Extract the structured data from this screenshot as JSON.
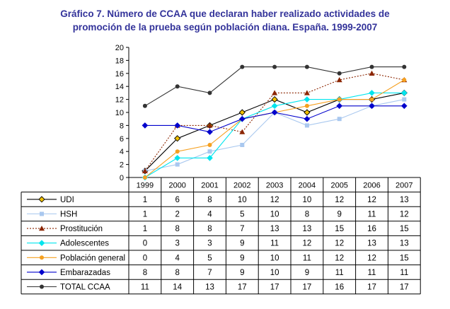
{
  "chart_data": {
    "type": "line",
    "title_lines": [
      "Gráfico 7. Número de CCAA que declaran haber realizado actividades  de",
      "promoción de la prueba según población diana.  España. 1999-2007"
    ],
    "categories": [
      "1999",
      "2000",
      "2001",
      "2002",
      "2003",
      "2004",
      "2005",
      "2006",
      "2007"
    ],
    "y_ticks": [
      "0",
      "2",
      "4",
      "6",
      "8",
      "10",
      "12",
      "14",
      "16",
      "18",
      "20"
    ],
    "ylim": [
      0,
      20
    ],
    "grid": false,
    "legend_placement": "data table below chart",
    "series": [
      {
        "name": "UDI",
        "values": [
          1,
          6,
          8,
          10,
          12,
          10,
          12,
          12,
          13
        ],
        "color": "#000000",
        "marker": "diamond-open",
        "marker_color": "#f0c000",
        "dash": "solid"
      },
      {
        "name": "HSH",
        "values": [
          1,
          2,
          4,
          5,
          10,
          8,
          9,
          11,
          12
        ],
        "color": "#a9c8ef",
        "marker": "square",
        "marker_color": "#a9c8ef",
        "dash": "solid"
      },
      {
        "name": "Prostitución",
        "values": [
          1,
          8,
          8,
          7,
          13,
          13,
          15,
          16,
          15
        ],
        "color": "#8b2500",
        "marker": "triangle",
        "marker_color": "#8b2500",
        "dash": "dotted"
      },
      {
        "name": "Adolescentes",
        "values": [
          0,
          3,
          3,
          9,
          11,
          12,
          12,
          13,
          13
        ],
        "color": "#00e5ee",
        "marker": "diamond",
        "marker_color": "#00e5ee",
        "dash": "solid"
      },
      {
        "name": "Población general",
        "values": [
          0,
          4,
          5,
          9,
          10,
          11,
          12,
          12,
          15
        ],
        "color": "#f5a020",
        "marker": "circle",
        "marker_color": "#f5a020",
        "dash": "solid"
      },
      {
        "name": "Embarazadas",
        "values": [
          8,
          8,
          7,
          9,
          10,
          9,
          11,
          11,
          11
        ],
        "color": "#0000cc",
        "marker": "diamond",
        "marker_color": "#0000cc",
        "dash": "solid"
      },
      {
        "name": "TOTAL CCAA",
        "values": [
          11,
          14,
          13,
          17,
          17,
          17,
          16,
          17,
          17
        ],
        "color": "#333333",
        "marker": "circle",
        "marker_color": "#333333",
        "dash": "solid"
      }
    ]
  }
}
